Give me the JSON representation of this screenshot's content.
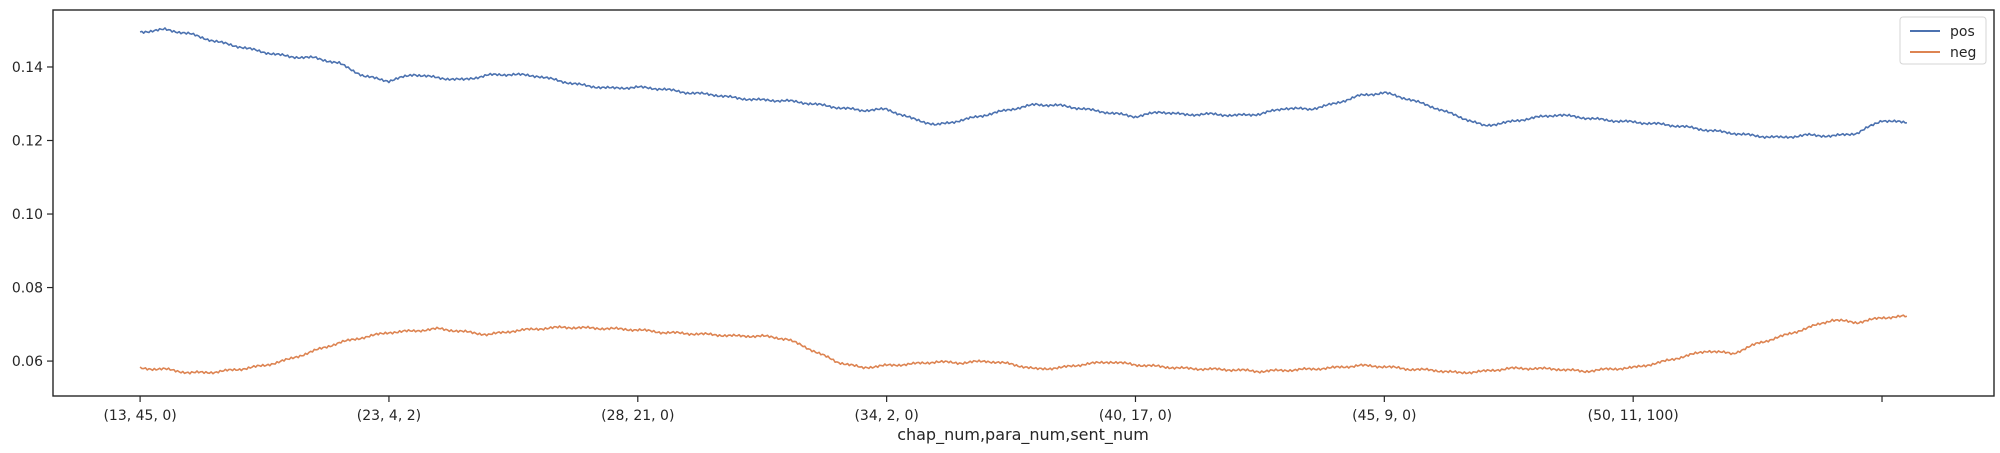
{
  "chart_data": {
    "type": "line",
    "title": "",
    "xlabel": "chap_num,para_num,sent_num",
    "ylabel": "",
    "x_tick_labels": [
      "(13, 45, 0)",
      "(23, 4, 2)",
      "(28, 21, 0)",
      "(34, 2, 0)",
      "(40, 17, 0)",
      "(45, 9, 0)",
      "(50, 11, 100)",
      ""
    ],
    "x_tick_positions": [
      0,
      1,
      2,
      3,
      4,
      5,
      6,
      7
    ],
    "y_ticks": [
      0.06,
      0.08,
      0.1,
      0.12,
      0.14
    ],
    "y_tick_labels": [
      "0.06",
      "0.08",
      "0.10",
      "0.12",
      "0.14"
    ],
    "xlim": [
      -0.35,
      7.45
    ],
    "ylim": [
      0.0505,
      0.1555
    ],
    "grid": false,
    "legend_position": "top-right",
    "series": [
      {
        "name": "pos",
        "color": "#4c72b0",
        "x": [
          0,
          0.1,
          0.2,
          0.3,
          0.4,
          0.5,
          0.6,
          0.7,
          0.8,
          0.9,
          1.0,
          1.1,
          1.2,
          1.3,
          1.4,
          1.5,
          1.6,
          1.7,
          1.8,
          1.9,
          2.0,
          2.1,
          2.2,
          2.3,
          2.4,
          2.5,
          2.6,
          2.7,
          2.8,
          2.9,
          3.0,
          3.1,
          3.2,
          3.3,
          3.4,
          3.5,
          3.6,
          3.7,
          3.8,
          3.9,
          4.0,
          4.1,
          4.2,
          4.3,
          4.4,
          4.5,
          4.6,
          4.7,
          4.8,
          4.9,
          5.0,
          5.1,
          5.2,
          5.3,
          5.4,
          5.5,
          5.6,
          5.7,
          5.8,
          5.9,
          6.0,
          6.1,
          6.2,
          6.3,
          6.4,
          6.5,
          6.6,
          6.7,
          6.8,
          6.9,
          7.0,
          7.1
        ],
        "values": [
          0.1495,
          0.1502,
          0.149,
          0.147,
          0.1455,
          0.144,
          0.1428,
          0.1425,
          0.141,
          0.1375,
          0.1362,
          0.138,
          0.137,
          0.1365,
          0.1378,
          0.138,
          0.1375,
          0.136,
          0.1348,
          0.1342,
          0.1345,
          0.134,
          0.133,
          0.1325,
          0.1315,
          0.131,
          0.1308,
          0.13,
          0.129,
          0.1282,
          0.1285,
          0.126,
          0.1242,
          0.1255,
          0.127,
          0.1285,
          0.1298,
          0.1295,
          0.1285,
          0.1275,
          0.1265,
          0.1278,
          0.127,
          0.1272,
          0.1268,
          0.1272,
          0.1288,
          0.1285,
          0.13,
          0.1322,
          0.133,
          0.1312,
          0.129,
          0.1265,
          0.124,
          0.125,
          0.1262,
          0.127,
          0.1262,
          0.1255,
          0.125,
          0.1245,
          0.1238,
          0.1228,
          0.122,
          0.1212,
          0.1208,
          0.1215,
          0.1212,
          0.122,
          0.1255,
          0.1248
        ]
      },
      {
        "name": "neg",
        "color": "#dd8452",
        "x": [
          0,
          0.1,
          0.2,
          0.3,
          0.4,
          0.5,
          0.6,
          0.7,
          0.8,
          0.9,
          1.0,
          1.1,
          1.2,
          1.3,
          1.4,
          1.5,
          1.6,
          1.7,
          1.8,
          1.9,
          2.0,
          2.1,
          2.2,
          2.3,
          2.4,
          2.5,
          2.6,
          2.7,
          2.8,
          2.9,
          3.0,
          3.1,
          3.2,
          3.3,
          3.4,
          3.5,
          3.6,
          3.7,
          3.8,
          3.9,
          4.0,
          4.1,
          4.2,
          4.3,
          4.4,
          4.5,
          4.6,
          4.7,
          4.8,
          4.9,
          5.0,
          5.1,
          5.2,
          5.3,
          5.4,
          5.5,
          5.6,
          5.7,
          5.8,
          5.9,
          6.0,
          6.1,
          6.2,
          6.3,
          6.4,
          6.5,
          6.6,
          6.7,
          6.8,
          6.9,
          7.0,
          7.1
        ],
        "values": [
          0.058,
          0.0578,
          0.0568,
          0.057,
          0.0578,
          0.0588,
          0.0605,
          0.0628,
          0.065,
          0.0665,
          0.0678,
          0.0682,
          0.0688,
          0.068,
          0.0672,
          0.0682,
          0.0688,
          0.0692,
          0.069,
          0.0688,
          0.0685,
          0.0678,
          0.0675,
          0.0672,
          0.0668,
          0.0668,
          0.066,
          0.063,
          0.0598,
          0.0582,
          0.0588,
          0.0592,
          0.0598,
          0.0595,
          0.06,
          0.0592,
          0.0578,
          0.0582,
          0.0592,
          0.0598,
          0.059,
          0.0585,
          0.058,
          0.0578,
          0.0576,
          0.0572,
          0.0575,
          0.0578,
          0.0582,
          0.0588,
          0.0585,
          0.0578,
          0.0575,
          0.0568,
          0.0572,
          0.058,
          0.058,
          0.0578,
          0.0572,
          0.0578,
          0.0582,
          0.0595,
          0.0612,
          0.0628,
          0.062,
          0.0648,
          0.0668,
          0.069,
          0.0712,
          0.0705,
          0.0718,
          0.0722
        ]
      }
    ]
  }
}
